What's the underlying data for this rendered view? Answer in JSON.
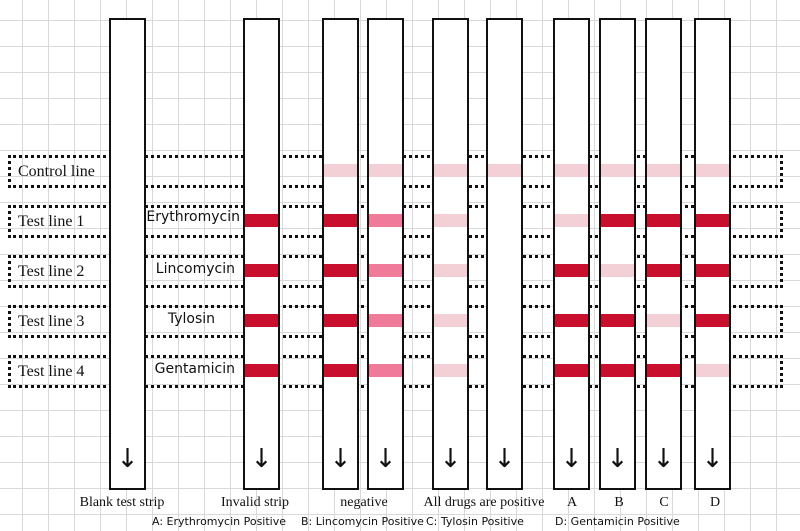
{
  "rows": [
    {
      "label": "Control line",
      "drug": ""
    },
    {
      "label": "Test line 1",
      "drug": "Erythromycin"
    },
    {
      "label": "Test line 2",
      "drug": "Lincomycin"
    },
    {
      "label": "Test line 3",
      "drug": "Tylosin"
    },
    {
      "label": "Test line 4",
      "drug": "Gentamicin"
    }
  ],
  "colors": {
    "strong": "#c8102e",
    "medium": "#f07a9a",
    "faint": "#f3cfd6"
  },
  "arrow_icon": "down-arrow-icon",
  "strips": [
    {
      "label": "Blank test strip",
      "bands": [
        "none",
        "none",
        "none",
        "none",
        "none"
      ]
    },
    {
      "label": "Invalid strip",
      "bands": [
        "none",
        "strong",
        "strong",
        "strong",
        "strong"
      ]
    },
    {
      "label": "negative",
      "bands": [
        "faint",
        "strong",
        "strong",
        "strong",
        "strong"
      ]
    },
    {
      "label": "",
      "bands": [
        "faint",
        "medium",
        "medium",
        "medium",
        "medium"
      ]
    },
    {
      "label": "All drugs are positive",
      "bands": [
        "faint",
        "faint",
        "faint",
        "faint",
        "faint"
      ]
    },
    {
      "label": "",
      "bands": [
        "faint",
        "none",
        "none",
        "none",
        "none"
      ]
    },
    {
      "label": "A",
      "bands": [
        "faint",
        "faint",
        "strong",
        "strong",
        "strong"
      ]
    },
    {
      "label": "B",
      "bands": [
        "faint",
        "strong",
        "faint",
        "strong",
        "strong"
      ]
    },
    {
      "label": "C",
      "bands": [
        "faint",
        "strong",
        "strong",
        "faint",
        "strong"
      ]
    },
    {
      "label": "D",
      "bands": [
        "faint",
        "strong",
        "strong",
        "strong",
        "faint"
      ]
    }
  ],
  "legend": [
    "A: Erythromycin Positive",
    "B: Lincomycin Positive",
    "C: Tylosin Positive",
    "D: Gentamicin Positive"
  ]
}
